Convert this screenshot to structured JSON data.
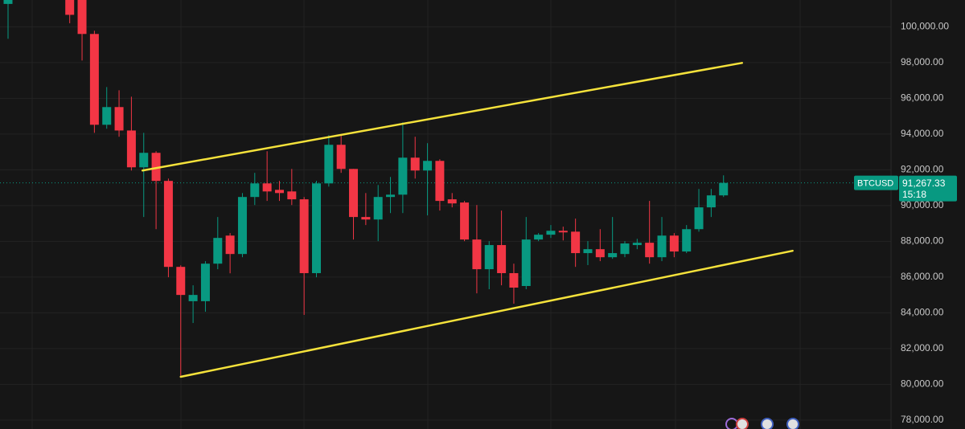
{
  "chart_data": {
    "type": "candlestick",
    "symbol": "BTCUSD",
    "countdown": "15:18",
    "last_price": {
      "value": 91267.33,
      "label": "91,267.33"
    },
    "up_color": "#089981",
    "down_color": "#f23645",
    "ylim": [
      77500,
      101500
    ],
    "yticks": [
      {
        "value": 78000,
        "label": "78,000.00"
      },
      {
        "value": 80000,
        "label": "80,000.00"
      },
      {
        "value": 82000,
        "label": "82,000.00"
      },
      {
        "value": 84000,
        "label": "84,000.00"
      },
      {
        "value": 86000,
        "label": "86,000.00"
      },
      {
        "value": 88000,
        "label": "88,000.00"
      },
      {
        "value": 90000,
        "label": "90,000.00"
      },
      {
        "value": 92000,
        "label": "92,000.00"
      },
      {
        "value": 94000,
        "label": "94,000.00"
      },
      {
        "value": 96000,
        "label": "96,000.00"
      },
      {
        "value": 98000,
        "label": "98,000.00"
      },
      {
        "value": 100000,
        "label": "100,000.00"
      }
    ],
    "grid": true,
    "open": [
      101280,
      null,
      null,
      null,
      null,
      101700,
      101500,
      99600,
      94520,
      95510,
      94200,
      92140,
      92950,
      91380,
      86570,
      84650,
      84650,
      86750,
      88320,
      87290,
      90480,
      91240,
      90880,
      90790,
      90350,
      86220,
      91240,
      93400,
      92050,
      89360,
      89220,
      90480,
      90610,
      92680,
      91960,
      92500,
      90350,
      90170,
      88100,
      86440,
      87790,
      86220,
      85500,
      88100,
      88370,
      88590,
      88540,
      87340,
      87560,
      87110,
      87290,
      87790,
      87920,
      87110,
      88320,
      87430,
      88680,
      89900,
      90570
    ],
    "high": [
      101500,
      null,
      null,
      null,
      null,
      101800,
      101500,
      99780,
      96630,
      96450,
      96090,
      94070,
      93040,
      91510,
      86660,
      85540,
      86890,
      89360,
      88460,
      90700,
      91830,
      93040,
      91380,
      92050,
      90480,
      91380,
      93940,
      93940,
      92050,
      90700,
      91150,
      91600,
      94660,
      93850,
      93490,
      92590,
      90700,
      90260,
      90030,
      88010,
      89720,
      86750,
      89360,
      88460,
      88910,
      88820,
      89270,
      88010,
      88680,
      89360,
      88010,
      88140,
      90260,
      89360,
      88460,
      88910,
      90930,
      90930,
      91690
    ],
    "low": [
      99330,
      null,
      null,
      null,
      null,
      100200,
      98114,
      94070,
      94300,
      93850,
      91960,
      89360,
      88680,
      85990,
      80470,
      83430,
      84060,
      86440,
      86210,
      87110,
      90030,
      90260,
      90260,
      90030,
      83880,
      85990,
      91060,
      91830,
      88100,
      88910,
      88010,
      89580,
      89580,
      91510,
      89450,
      89720,
      89900,
      88010,
      85090,
      85320,
      85540,
      84510,
      85320,
      88010,
      88190,
      88050,
      86570,
      86670,
      86890,
      87020,
      87110,
      87560,
      86750,
      86890,
      87110,
      87340,
      88540,
      89360,
      90480
    ],
    "close": [
      101500,
      null,
      null,
      null,
      null,
      100670,
      99600,
      94520,
      95510,
      94200,
      92140,
      92950,
      91380,
      86570,
      85000,
      85000,
      86750,
      88190,
      87290,
      90480,
      91240,
      90790,
      90700,
      90350,
      86220,
      91240,
      93400,
      92050,
      89360,
      89220,
      90480,
      90610,
      92680,
      91960,
      92500,
      90260,
      90120,
      88100,
      86440,
      87790,
      86220,
      85410,
      88100,
      88370,
      88590,
      88500,
      87340,
      87560,
      87110,
      87340,
      87880,
      87920,
      87110,
      88320,
      87430,
      88680,
      89900,
      90570,
      91267.33
    ],
    "trendlines": [
      {
        "color": "#f5e23b",
        "x": [
          10.9,
          59.5
        ],
        "y": [
          91960,
          97980
        ]
      },
      {
        "color": "#f5e23b",
        "x": [
          14,
          63.6
        ],
        "y": [
          80420,
          87470
        ]
      }
    ]
  }
}
